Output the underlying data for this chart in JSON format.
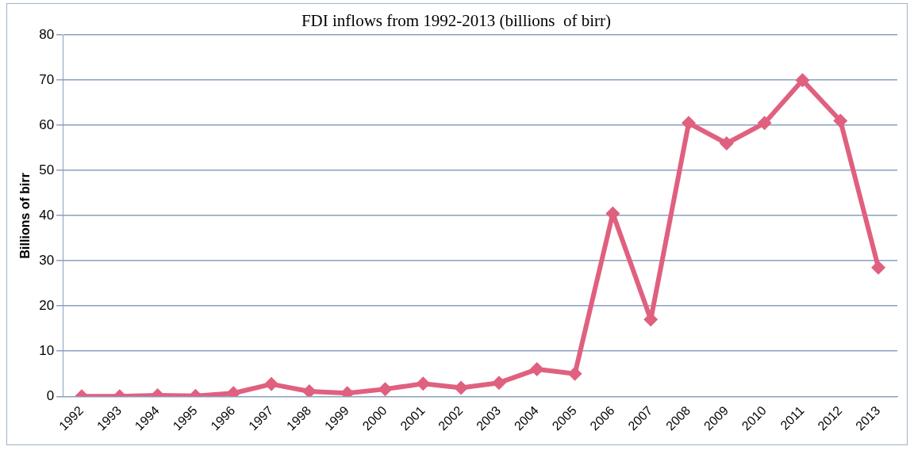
{
  "chart_data": {
    "type": "line",
    "title": "FDI inflows from 1992-2013 (billions  of birr)",
    "ylabel": "Billions of birr",
    "categories": [
      "1992",
      "1993",
      "1994",
      "1995",
      "1996",
      "1997",
      "1998",
      "1999",
      "2000",
      "2001",
      "2002",
      "2003",
      "2004",
      "2005",
      "2006",
      "2007",
      "2008",
      "2009",
      "2010",
      "2011",
      "2012",
      "2013"
    ],
    "series": [
      {
        "color": "#e0607f",
        "values": [
          0,
          0,
          0.2,
          0.1,
          0.7,
          2.7,
          1.1,
          0.7,
          1.6,
          2.8,
          1.9,
          3,
          6,
          5,
          40.5,
          17,
          60.5,
          56,
          60.5,
          70,
          61,
          28.5
        ]
      }
    ],
    "ylim": [
      0,
      80
    ],
    "yticks": [
      0,
      10,
      20,
      30,
      40,
      50,
      60,
      70,
      80
    ],
    "grid": "y",
    "legend": false,
    "marker": "diamond",
    "line_style": "solid"
  }
}
